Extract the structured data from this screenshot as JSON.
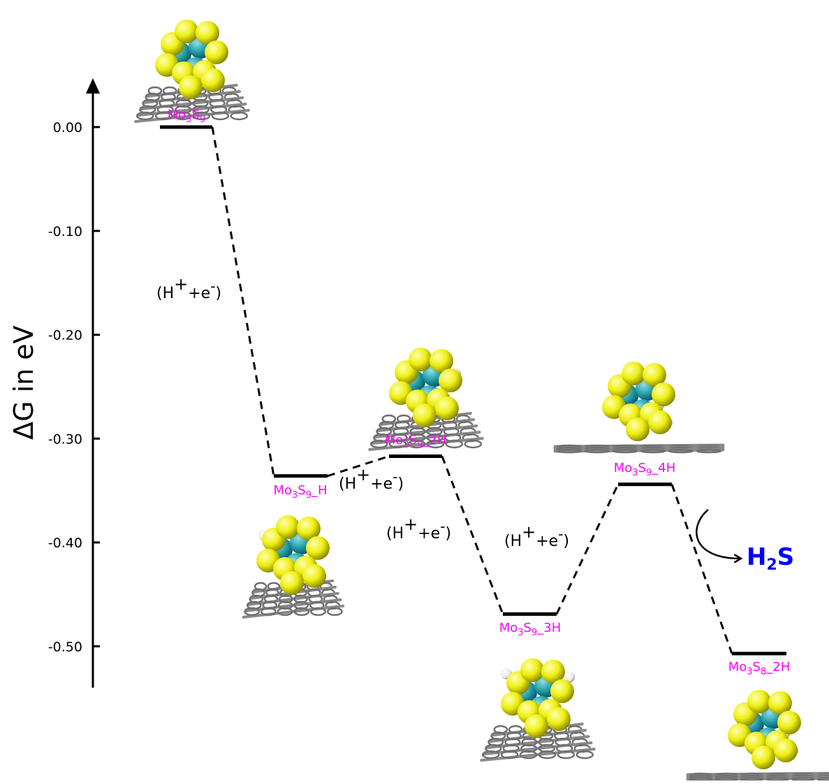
{
  "chart_data": {
    "type": "energy-level-diagram",
    "ylabel": "ΔG in eV",
    "yticks": [
      "0.00",
      "-0.10",
      "-0.20",
      "-0.30",
      "-0.40",
      "-0.50"
    ],
    "ylim": [
      -0.54,
      0.05
    ],
    "states": [
      {
        "label_main": "Mo",
        "sub1": "3",
        "mid": "S",
        "sub2": "9",
        "suffix": "",
        "value": 0.0
      },
      {
        "label_main": "Mo",
        "sub1": "3",
        "mid": "S",
        "sub2": "9",
        "suffix": "_H",
        "value": -0.336
      },
      {
        "label_main": "Mo",
        "sub1": "3",
        "mid": "S",
        "sub2": "9",
        "suffix": "_2H",
        "value": -0.317
      },
      {
        "label_main": "Mo",
        "sub1": "3",
        "mid": "S",
        "sub2": "9",
        "suffix": "_3H",
        "value": -0.469
      },
      {
        "label_main": "Mo",
        "sub1": "3",
        "mid": "S",
        "sub2": "9",
        "suffix": "_4H",
        "value": -0.344
      },
      {
        "label_main": "Mo",
        "sub1": "3",
        "mid": "S",
        "sub2": "8",
        "suffix": "_2H",
        "value": -0.507
      }
    ],
    "step_label": {
      "open": "(H",
      "plus": "+",
      "mid": "+e",
      "minus": "-",
      "close": ")"
    },
    "product": {
      "h": "H",
      "sub": "2",
      "s": "S"
    },
    "colors": {
      "state_label": "#ff00ff",
      "product": "#0000ff",
      "sulfur": "#f2f000",
      "molybdenum": "#1f9aa6",
      "hydrogen": "#f4f4f4",
      "graphene": "#808080"
    },
    "icons": [
      "mo3s9-cluster-on-graphene-icon",
      "h2s-release-arrow-icon"
    ]
  }
}
